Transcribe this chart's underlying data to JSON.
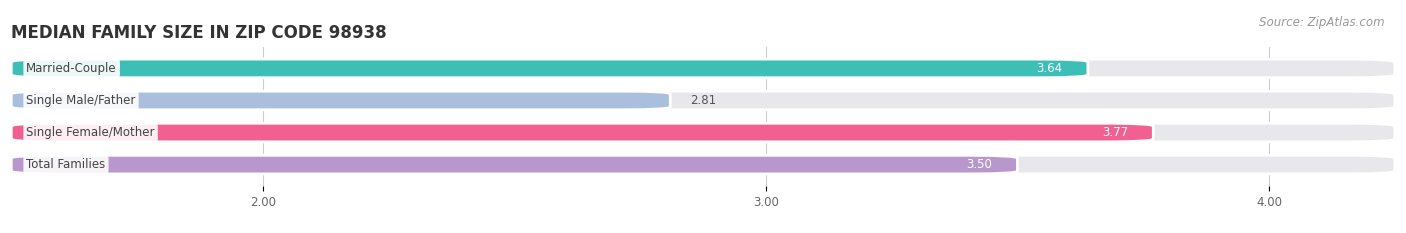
{
  "title": "MEDIAN FAMILY SIZE IN ZIP CODE 98938",
  "source": "Source: ZipAtlas.com",
  "categories": [
    "Married-Couple",
    "Single Male/Father",
    "Single Female/Mother",
    "Total Families"
  ],
  "values": [
    3.64,
    2.81,
    3.77,
    3.5
  ],
  "bar_colors": [
    "#3dbfb8",
    "#aabfde",
    "#f06090",
    "#b898cc"
  ],
  "xlim": [
    1.5,
    4.25
  ],
  "xticks": [
    2.0,
    3.0,
    4.0
  ],
  "xtick_labels": [
    "2.00",
    "3.00",
    "4.00"
  ],
  "bg_color": "#ffffff",
  "bar_bg_color": "#e8e8ec",
  "title_fontsize": 12,
  "label_fontsize": 8.5,
  "value_fontsize": 8.5,
  "source_fontsize": 8.5,
  "bar_height": 0.58
}
